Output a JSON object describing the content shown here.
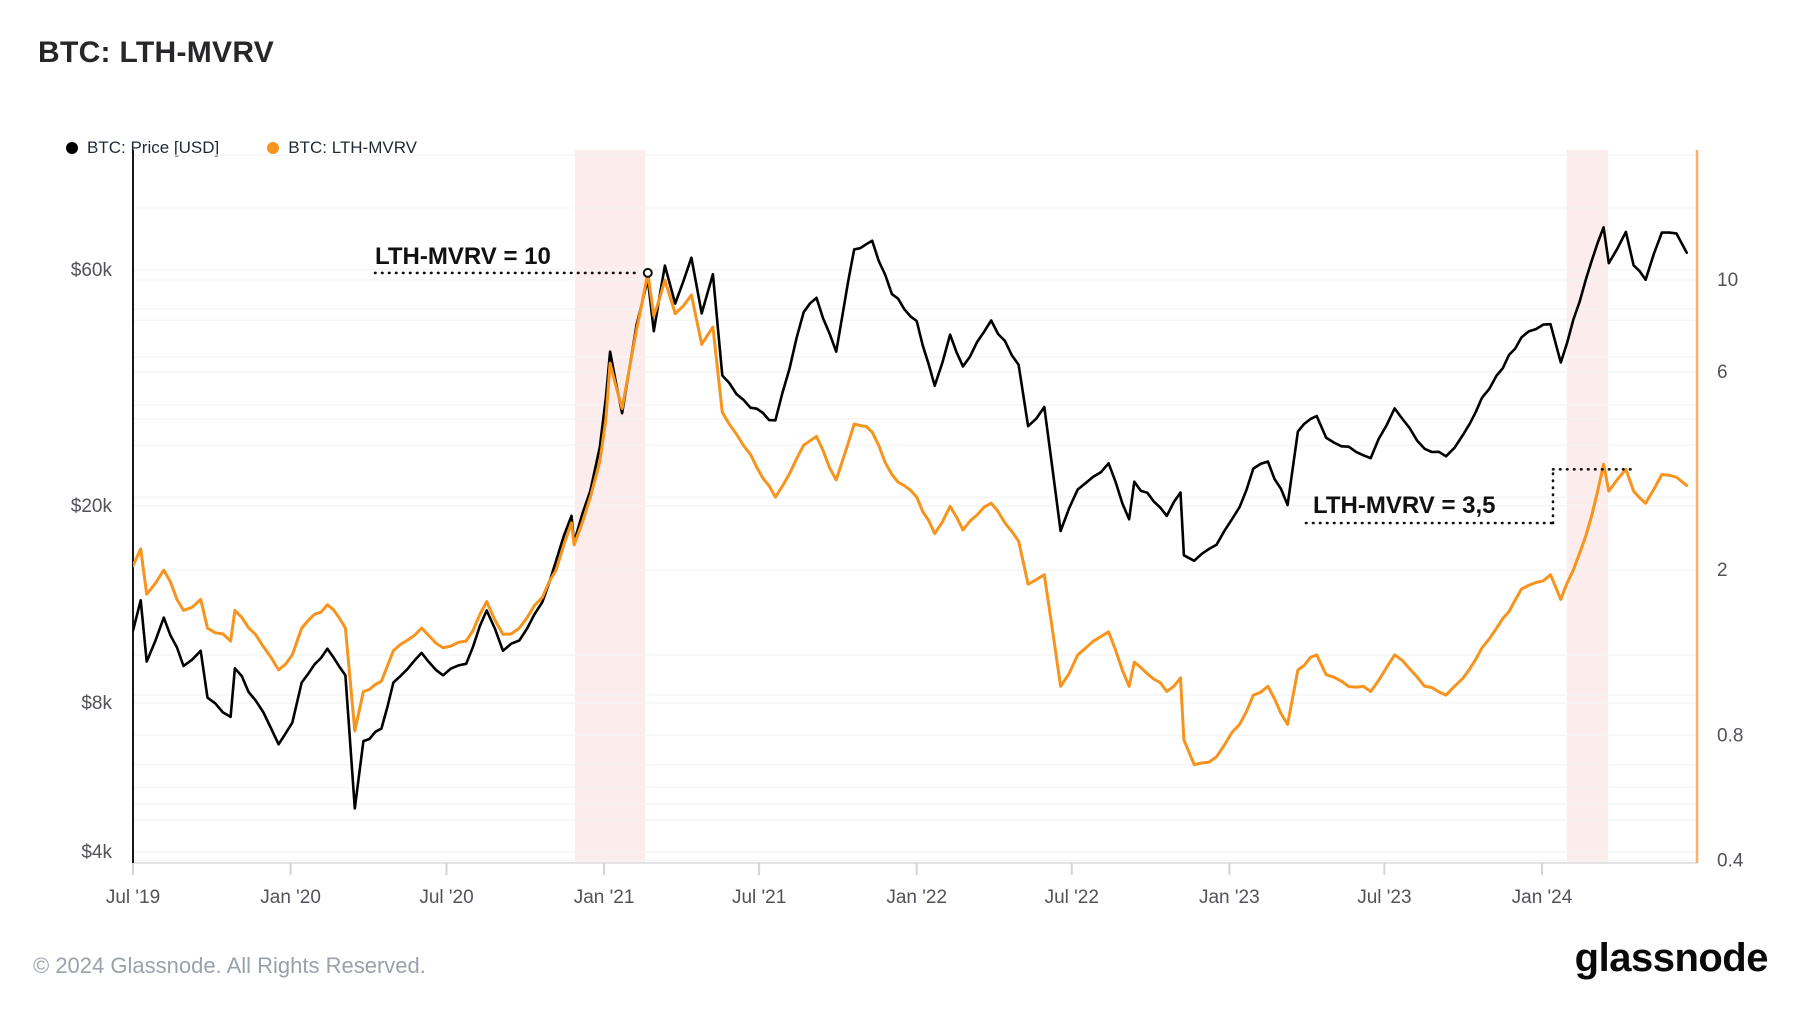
{
  "title": "BTC: LTH-MVRV",
  "legend": {
    "items": [
      {
        "label": "BTC: Price [USD]",
        "color": "#000000"
      },
      {
        "label": "BTC: LTH-MVRV",
        "color": "#f7941e"
      }
    ]
  },
  "footer": {
    "copyright": "© 2024 Glassnode. All Rights Reserved.",
    "logo_text": "glassnode"
  },
  "chart_data": {
    "type": "line",
    "title": "BTC: LTH-MVRV",
    "grid": true,
    "legend_position": "top-left",
    "x_range": {
      "start": "2019-07-01",
      "end": "2024-06-30"
    },
    "x_ticks": [
      {
        "label": "Jul '19",
        "date": "2019-07-01"
      },
      {
        "label": "Jan '20",
        "date": "2020-01-01"
      },
      {
        "label": "Jul '20",
        "date": "2020-07-01"
      },
      {
        "label": "Jan '21",
        "date": "2021-01-01"
      },
      {
        "label": "Jul '21",
        "date": "2021-07-01"
      },
      {
        "label": "Jan '22",
        "date": "2022-01-01"
      },
      {
        "label": "Jul '22",
        "date": "2022-07-01"
      },
      {
        "label": "Jan '23",
        "date": "2023-01-01"
      },
      {
        "label": "Jul '23",
        "date": "2023-07-01"
      },
      {
        "label": "Jan '24",
        "date": "2024-01-01"
      }
    ],
    "left_axis": {
      "title": "BTC price in USD",
      "scale": "log",
      "min": 3800,
      "max": 104800,
      "ticks": [
        {
          "label": "$60k",
          "value": 60000
        },
        {
          "label": "$20k",
          "value": 20000
        },
        {
          "label": "$8k",
          "value": 8000
        },
        {
          "label": "$4k",
          "value": 4000
        }
      ],
      "gridlines": [
        80000,
        60000,
        50000,
        40000,
        30000,
        20000,
        10000,
        8000,
        6000,
        5000,
        4000
      ]
    },
    "right_axis": {
      "title": "LTH-MVRV ratio",
      "scale": "log",
      "min": 0.394,
      "max": 20.57,
      "ticks": [
        {
          "label": "10",
          "value": 10
        },
        {
          "label": "6",
          "value": 6
        },
        {
          "label": "2",
          "value": 2
        },
        {
          "label": "0.8",
          "value": 0.8
        },
        {
          "label": "0.4",
          "value": 0.4
        }
      ],
      "gridlines": [
        20,
        10,
        8,
        6,
        5,
        4,
        3,
        2,
        1,
        0.8,
        0.6,
        0.5,
        0.4
      ]
    },
    "bands": [
      {
        "from": "2020-11-28",
        "to": "2021-02-18",
        "color": "#fbe5e4"
      },
      {
        "from": "2024-01-30",
        "to": "2024-03-18",
        "color": "#fbe5e4"
      }
    ],
    "annotations": [
      {
        "id": "mvrv-10",
        "label": "LTH-MVRV = 10",
        "level": 10.4,
        "at_date": "2021-02-21",
        "style": "dotted-line-with-marker"
      },
      {
        "id": "mvrv-35",
        "label": "LTH-MVRV = 3,5",
        "level": 3.5,
        "at_date": "2024-04-20",
        "style": "dotted-step"
      }
    ],
    "series": [
      {
        "name": "BTC: Price [USD]",
        "axis": "left",
        "color": "#000000",
        "points": [
          [
            "2019-07-01",
            11200
          ],
          [
            "2019-07-10",
            12900
          ],
          [
            "2019-07-17",
            9700
          ],
          [
            "2019-08-06",
            11900
          ],
          [
            "2019-08-29",
            9500
          ],
          [
            "2019-09-18",
            10200
          ],
          [
            "2019-09-26",
            8200
          ],
          [
            "2019-10-23",
            7500
          ],
          [
            "2019-10-28",
            9400
          ],
          [
            "2019-11-21",
            8100
          ],
          [
            "2019-12-18",
            6600
          ],
          [
            "2020-01-03",
            7300
          ],
          [
            "2020-01-14",
            8800
          ],
          [
            "2020-02-13",
            10300
          ],
          [
            "2020-03-05",
            9100
          ],
          [
            "2020-03-16",
            4900
          ],
          [
            "2020-03-26",
            6700
          ],
          [
            "2020-04-16",
            7100
          ],
          [
            "2020-04-30",
            8800
          ],
          [
            "2020-06-02",
            10100
          ],
          [
            "2020-06-27",
            9100
          ],
          [
            "2020-07-24",
            9600
          ],
          [
            "2020-08-17",
            12300
          ],
          [
            "2020-09-05",
            10200
          ],
          [
            "2020-09-24",
            10700
          ],
          [
            "2020-10-21",
            12800
          ],
          [
            "2020-11-06",
            15500
          ],
          [
            "2020-11-24",
            19100
          ],
          [
            "2020-11-27",
            16900
          ],
          [
            "2020-12-16",
            21500
          ],
          [
            "2020-12-27",
            26300
          ],
          [
            "2021-01-03",
            33000
          ],
          [
            "2021-01-08",
            41000
          ],
          [
            "2021-01-22",
            30800
          ],
          [
            "2021-02-08",
            46500
          ],
          [
            "2021-02-21",
            57500
          ],
          [
            "2021-02-28",
            45100
          ],
          [
            "2021-03-13",
            61200
          ],
          [
            "2021-03-25",
            51300
          ],
          [
            "2021-04-13",
            63500
          ],
          [
            "2021-04-25",
            49000
          ],
          [
            "2021-05-08",
            58800
          ],
          [
            "2021-05-19",
            36700
          ],
          [
            "2021-06-21",
            31600
          ],
          [
            "2021-07-20",
            29800
          ],
          [
            "2021-08-22",
            49300
          ],
          [
            "2021-09-06",
            52700
          ],
          [
            "2021-09-29",
            41000
          ],
          [
            "2021-10-20",
            66000
          ],
          [
            "2021-11-10",
            68700
          ],
          [
            "2021-12-03",
            53600
          ],
          [
            "2022-01-01",
            47300
          ],
          [
            "2022-01-22",
            35000
          ],
          [
            "2022-02-09",
            44400
          ],
          [
            "2022-02-24",
            38300
          ],
          [
            "2022-03-29",
            47400
          ],
          [
            "2022-04-30",
            38600
          ],
          [
            "2022-05-11",
            29000
          ],
          [
            "2022-05-30",
            31700
          ],
          [
            "2022-06-18",
            17800
          ],
          [
            "2022-07-08",
            21600
          ],
          [
            "2022-08-13",
            24400
          ],
          [
            "2022-09-06",
            18800
          ],
          [
            "2022-09-12",
            22400
          ],
          [
            "2022-10-20",
            19100
          ],
          [
            "2022-11-05",
            21300
          ],
          [
            "2022-11-09",
            15900
          ],
          [
            "2022-11-21",
            15500
          ],
          [
            "2022-12-17",
            16700
          ],
          [
            "2023-01-13",
            19900
          ],
          [
            "2023-01-29",
            23800
          ],
          [
            "2023-02-15",
            24600
          ],
          [
            "2023-03-10",
            20100
          ],
          [
            "2023-03-22",
            28300
          ],
          [
            "2023-04-13",
            30400
          ],
          [
            "2023-04-24",
            27500
          ],
          [
            "2023-05-12",
            26400
          ],
          [
            "2023-06-15",
            25000
          ],
          [
            "2023-07-13",
            31500
          ],
          [
            "2023-08-17",
            26100
          ],
          [
            "2023-09-11",
            25200
          ],
          [
            "2023-10-01",
            27900
          ],
          [
            "2023-10-23",
            33100
          ],
          [
            "2023-11-09",
            36700
          ],
          [
            "2023-12-08",
            43800
          ],
          [
            "2024-01-11",
            46600
          ],
          [
            "2024-01-23",
            39000
          ],
          [
            "2024-02-14",
            51800
          ],
          [
            "2024-02-28",
            62500
          ],
          [
            "2024-03-13",
            73100
          ],
          [
            "2024-03-19",
            61900
          ],
          [
            "2024-04-08",
            71600
          ],
          [
            "2024-04-17",
            61300
          ],
          [
            "2024-05-01",
            57300
          ],
          [
            "2024-05-20",
            71400
          ],
          [
            "2024-06-06",
            71100
          ],
          [
            "2024-06-18",
            65000
          ]
        ]
      },
      {
        "name": "BTC: LTH-MVRV",
        "axis": "right",
        "color": "#f7941e",
        "points": [
          [
            "2019-07-01",
            2.05
          ],
          [
            "2019-07-10",
            2.25
          ],
          [
            "2019-07-17",
            1.75
          ],
          [
            "2019-08-06",
            2.0
          ],
          [
            "2019-08-29",
            1.6
          ],
          [
            "2019-09-18",
            1.7
          ],
          [
            "2019-09-26",
            1.45
          ],
          [
            "2019-10-23",
            1.35
          ],
          [
            "2019-10-28",
            1.6
          ],
          [
            "2019-11-21",
            1.4
          ],
          [
            "2019-12-18",
            1.15
          ],
          [
            "2020-01-03",
            1.25
          ],
          [
            "2020-01-14",
            1.45
          ],
          [
            "2020-02-13",
            1.65
          ],
          [
            "2020-03-05",
            1.45
          ],
          [
            "2020-03-16",
            0.82
          ],
          [
            "2020-03-26",
            1.02
          ],
          [
            "2020-04-16",
            1.08
          ],
          [
            "2020-04-30",
            1.28
          ],
          [
            "2020-06-02",
            1.45
          ],
          [
            "2020-06-27",
            1.3
          ],
          [
            "2020-07-24",
            1.35
          ],
          [
            "2020-08-17",
            1.68
          ],
          [
            "2020-09-05",
            1.4
          ],
          [
            "2020-09-24",
            1.45
          ],
          [
            "2020-10-21",
            1.72
          ],
          [
            "2020-11-06",
            2.0
          ],
          [
            "2020-11-24",
            2.6
          ],
          [
            "2020-11-27",
            2.3
          ],
          [
            "2020-12-16",
            3.0
          ],
          [
            "2020-12-27",
            3.65
          ],
          [
            "2021-01-03",
            4.6
          ],
          [
            "2021-01-08",
            6.3
          ],
          [
            "2021-01-22",
            4.9
          ],
          [
            "2021-02-08",
            7.6
          ],
          [
            "2021-02-21",
            10.4
          ],
          [
            "2021-02-28",
            8.2
          ],
          [
            "2021-03-13",
            10.0
          ],
          [
            "2021-03-25",
            8.3
          ],
          [
            "2021-04-13",
            9.2
          ],
          [
            "2021-04-25",
            7.0
          ],
          [
            "2021-05-08",
            7.7
          ],
          [
            "2021-05-19",
            4.8
          ],
          [
            "2021-06-21",
            3.8
          ],
          [
            "2021-07-20",
            3.0
          ],
          [
            "2021-08-22",
            4.0
          ],
          [
            "2021-09-06",
            4.2
          ],
          [
            "2021-09-29",
            3.3
          ],
          [
            "2021-10-20",
            4.5
          ],
          [
            "2021-11-10",
            4.3
          ],
          [
            "2021-12-03",
            3.4
          ],
          [
            "2022-01-01",
            3.0
          ],
          [
            "2022-01-22",
            2.45
          ],
          [
            "2022-02-09",
            2.85
          ],
          [
            "2022-02-24",
            2.5
          ],
          [
            "2022-03-29",
            2.9
          ],
          [
            "2022-04-30",
            2.35
          ],
          [
            "2022-05-11",
            1.85
          ],
          [
            "2022-05-30",
            1.95
          ],
          [
            "2022-06-18",
            1.05
          ],
          [
            "2022-07-08",
            1.25
          ],
          [
            "2022-08-13",
            1.42
          ],
          [
            "2022-09-06",
            1.05
          ],
          [
            "2022-09-12",
            1.2
          ],
          [
            "2022-10-20",
            1.02
          ],
          [
            "2022-11-05",
            1.1
          ],
          [
            "2022-11-09",
            0.78
          ],
          [
            "2022-11-21",
            0.68
          ],
          [
            "2022-12-17",
            0.71
          ],
          [
            "2023-01-13",
            0.85
          ],
          [
            "2023-01-29",
            1.0
          ],
          [
            "2023-02-15",
            1.05
          ],
          [
            "2023-03-10",
            0.85
          ],
          [
            "2023-03-22",
            1.15
          ],
          [
            "2023-04-13",
            1.25
          ],
          [
            "2023-04-24",
            1.12
          ],
          [
            "2023-05-12",
            1.08
          ],
          [
            "2023-06-15",
            1.02
          ],
          [
            "2023-07-13",
            1.25
          ],
          [
            "2023-08-17",
            1.05
          ],
          [
            "2023-09-11",
            1.0
          ],
          [
            "2023-10-01",
            1.1
          ],
          [
            "2023-10-23",
            1.3
          ],
          [
            "2023-11-09",
            1.45
          ],
          [
            "2023-12-08",
            1.8
          ],
          [
            "2024-01-11",
            1.95
          ],
          [
            "2024-01-23",
            1.7
          ],
          [
            "2024-02-14",
            2.2
          ],
          [
            "2024-02-28",
            2.7
          ],
          [
            "2024-03-13",
            3.6
          ],
          [
            "2024-03-19",
            3.1
          ],
          [
            "2024-04-08",
            3.5
          ],
          [
            "2024-04-17",
            3.1
          ],
          [
            "2024-05-01",
            2.9
          ],
          [
            "2024-05-20",
            3.4
          ],
          [
            "2024-06-06",
            3.35
          ],
          [
            "2024-06-18",
            3.2
          ]
        ]
      }
    ]
  }
}
